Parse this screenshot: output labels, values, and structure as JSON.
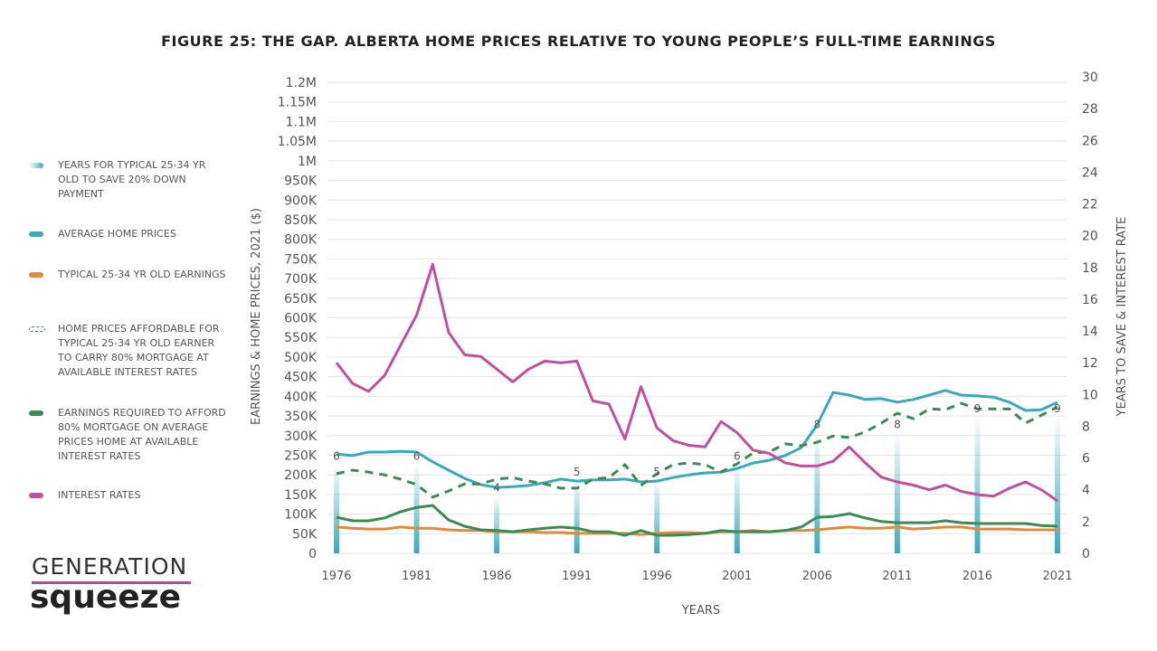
{
  "chart_data": {
    "type": "line",
    "title": "FIGURE 25: THE GAP. ALBERTA HOME PRICES RELATIVE TO YOUNG PEOPLE’S FULL-TIME EARNINGS",
    "xlabel": "YEARS",
    "ylabel": "EARNINGS & HOME PRICES, 2021 ($)",
    "ylabel_right": "YEARS TO SAVE & INTEREST RATE",
    "xlim": [
      1976,
      2021
    ],
    "ylim": [
      0,
      1200000
    ],
    "ylim_right": [
      0,
      30
    ],
    "x_ticks": [
      "1976",
      "1981",
      "1986",
      "1991",
      "1996",
      "2001",
      "2006",
      "2011",
      "2016",
      "2021"
    ],
    "y_ticks": [
      "0",
      "50K",
      "100K",
      "150K",
      "200K",
      "250K",
      "300K",
      "350K",
      "400K",
      "450K",
      "500K",
      "550K",
      "600K",
      "650K",
      "700K",
      "750K",
      "800K",
      "850K",
      "900K",
      "950K",
      "1M",
      "1.05M",
      "1.1M",
      "1.15M",
      "1.2M"
    ],
    "y_ticks_right": [
      "0",
      "2",
      "4",
      "6",
      "8",
      "10",
      "12",
      "14",
      "16",
      "18",
      "20",
      "22",
      "24",
      "26",
      "28",
      "30"
    ],
    "grid": true,
    "legend_position": "left",
    "x": [
      1976,
      1977,
      1978,
      1979,
      1980,
      1981,
      1982,
      1983,
      1984,
      1985,
      1986,
      1987,
      1988,
      1989,
      1990,
      1991,
      1992,
      1993,
      1994,
      1995,
      1996,
      1997,
      1998,
      1999,
      2000,
      2001,
      2002,
      2003,
      2004,
      2005,
      2006,
      2007,
      2008,
      2009,
      2010,
      2011,
      2012,
      2013,
      2014,
      2015,
      2016,
      2017,
      2018,
      2019,
      2020,
      2021
    ],
    "bars": {
      "name": "YEARS FOR TYPICAL 25-34 YR OLD TO SAVE 20% DOWN PAYMENT",
      "color": "#3aaab8",
      "axis": "right",
      "x": [
        1976,
        1981,
        1986,
        1991,
        1996,
        2001,
        2006,
        2011,
        2016,
        2021
      ],
      "values": [
        6,
        6,
        4,
        5,
        5,
        6,
        8,
        8,
        9,
        9
      ]
    },
    "series": [
      {
        "name": "AVERAGE HOME PRICES",
        "color": "#3aaab8",
        "axis": "left",
        "dash": false,
        "values": [
          253000,
          249000,
          258000,
          258000,
          260000,
          258000,
          233000,
          212000,
          191000,
          175000,
          168000,
          170000,
          173000,
          180000,
          189000,
          184000,
          187000,
          187000,
          189000,
          182000,
          184000,
          193000,
          200000,
          205000,
          207000,
          216000,
          230000,
          237000,
          249000,
          269000,
          327000,
          410000,
          403000,
          392000,
          394000,
          385000,
          392000,
          403000,
          415000,
          403000,
          401000,
          398000,
          385000,
          364000,
          366000,
          385000
        ]
      },
      {
        "name": "TYPICAL 25-34 YR OLD EARNINGS",
        "color": "#e08a3c",
        "axis": "left",
        "dash": false,
        "values": [
          67000,
          64000,
          62000,
          62000,
          67000,
          64000,
          64000,
          60000,
          58000,
          58000,
          55000,
          55000,
          55000,
          53000,
          53000,
          51000,
          51000,
          51000,
          51000,
          48000,
          51000,
          53000,
          53000,
          51000,
          55000,
          55000,
          58000,
          55000,
          58000,
          58000,
          60000,
          64000,
          67000,
          64000,
          64000,
          67000,
          62000,
          64000,
          67000,
          67000,
          62000,
          62000,
          62000,
          60000,
          60000,
          60000
        ]
      },
      {
        "name": "HOME PRICES AFFORDABLE FOR TYPICAL 25-34 YR OLD EARNER TO CARRY 80% MORTGAGE AT AVAILABLE INTEREST RATES",
        "color": "#3d8a55",
        "axis": "left",
        "dash": true,
        "values": [
          203000,
          212000,
          207000,
          200000,
          189000,
          175000,
          143000,
          159000,
          177000,
          177000,
          189000,
          193000,
          184000,
          177000,
          166000,
          166000,
          189000,
          193000,
          226000,
          173000,
          203000,
          226000,
          230000,
          226000,
          207000,
          228000,
          256000,
          258000,
          279000,
          274000,
          283000,
          299000,
          295000,
          309000,
          332000,
          357000,
          343000,
          368000,
          366000,
          382000,
          368000,
          368000,
          368000,
          332000,
          352000,
          373000
        ]
      },
      {
        "name": "EARNINGS REQUIRED TO AFFORD 80% MORTGAGE ON AVERAGE PRICES HOME AT AVAILABLE INTEREST RATES",
        "color": "#3d8a55",
        "axis": "left",
        "dash": false,
        "values": [
          92000,
          83000,
          83000,
          90000,
          106000,
          117000,
          122000,
          85000,
          69000,
          60000,
          58000,
          55000,
          60000,
          64000,
          67000,
          64000,
          55000,
          55000,
          46000,
          58000,
          46000,
          46000,
          48000,
          51000,
          58000,
          55000,
          55000,
          55000,
          58000,
          67000,
          92000,
          94000,
          101000,
          90000,
          81000,
          78000,
          78000,
          78000,
          83000,
          78000,
          76000,
          76000,
          76000,
          76000,
          71000,
          69000
        ]
      },
      {
        "name": "INTEREST RATES",
        "color": "#c0509e",
        "axis": "right",
        "dash": false,
        "values": [
          12.0,
          10.7,
          10.2,
          11.2,
          13.1,
          15.0,
          18.2,
          13.9,
          12.5,
          12.4,
          11.6,
          10.8,
          11.6,
          12.1,
          12.0,
          12.1,
          9.6,
          9.4,
          7.2,
          10.5,
          7.9,
          7.1,
          6.8,
          6.7,
          8.3,
          7.6,
          6.5,
          6.3,
          5.7,
          5.5,
          5.5,
          5.8,
          6.7,
          5.7,
          4.8,
          4.5,
          4.3,
          4.0,
          4.3,
          3.9,
          3.7,
          3.6,
          4.1,
          4.5,
          4.0,
          3.3
        ]
      }
    ]
  },
  "legend": [
    {
      "label": "YEARS FOR TYPICAL 25-34 YR OLD TO SAVE 20% DOWN PAYMENT",
      "swatch": "gradient"
    },
    {
      "label": "AVERAGE HOME PRICES",
      "swatch": "solid",
      "color": "#3aaab8"
    },
    {
      "label": "TYPICAL 25-34 YR OLD EARNINGS",
      "swatch": "solid",
      "color": "#e08a3c"
    },
    {
      "label": "HOME PRICES AFFORDABLE FOR TYPICAL 25-34 YR OLD EARNER TO CARRY 80% MORTGAGE AT AVAILABLE INTEREST RATES",
      "swatch": "dashed",
      "color": "#3d8a55"
    },
    {
      "label": "EARNINGS REQUIRED TO AFFORD 80% MORTGAGE ON AVERAGE PRICES HOME AT AVAILABLE INTEREST RATES",
      "swatch": "solid",
      "color": "#3d8a55"
    },
    {
      "label": "INTEREST RATES",
      "swatch": "solid",
      "color": "#c0509e"
    }
  ],
  "logo": {
    "line1": "GENERATION",
    "line2": "squeeze"
  }
}
